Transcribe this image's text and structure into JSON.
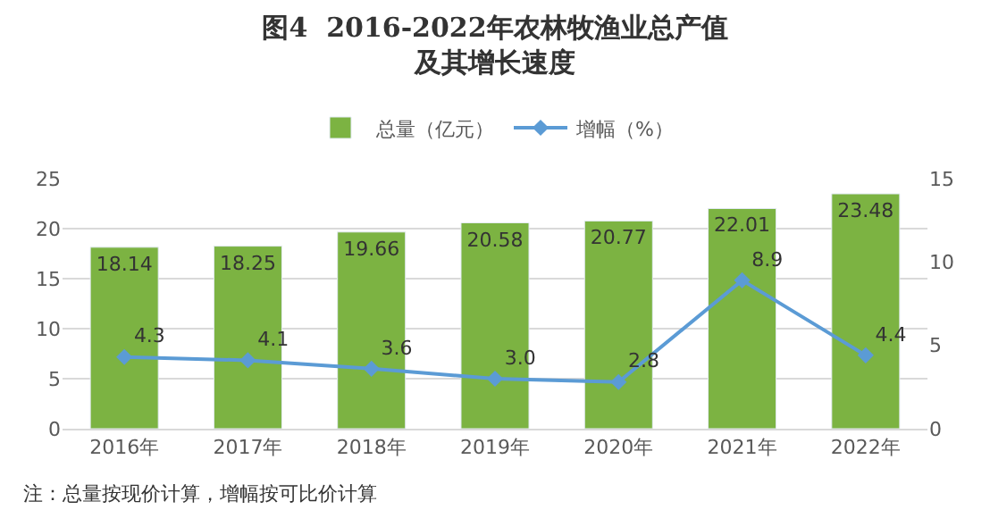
{
  "chart_data": {
    "type": "bar",
    "title": "图4  2016-2022年农林牧渔业总产值",
    "subtitle": "及其增长速度",
    "categories": [
      "2016年",
      "2017年",
      "2018年",
      "2019年",
      "2020年",
      "2021年",
      "2022年"
    ],
    "series": [
      {
        "name": "总量（亿元）",
        "color": "#7cb342",
        "values": [
          18.14,
          18.25,
          19.66,
          20.58,
          20.77,
          22.01,
          23.48
        ]
      },
      {
        "name": "增幅（%）",
        "type": "line",
        "axis": "y2",
        "color": "#5b9bd5",
        "marker": "diamond",
        "values": [
          4.3,
          4.1,
          3.6,
          3.0,
          2.8,
          8.9,
          4.4
        ],
        "value_labels": [
          "4.3",
          "4.1",
          "3.6",
          "3.0",
          "2.8",
          "8.9",
          "4.4"
        ]
      }
    ],
    "ylim": [
      0,
      25
    ],
    "yticks": [
      0,
      5,
      10,
      15,
      20,
      25
    ],
    "y2lim": [
      0,
      15
    ],
    "y2ticks": [
      0,
      5,
      10,
      15
    ],
    "grid": "y",
    "legend": "top",
    "data_labels": true,
    "annotations": [
      "注：总量按现价计算，增幅按可比价计算"
    ]
  }
}
